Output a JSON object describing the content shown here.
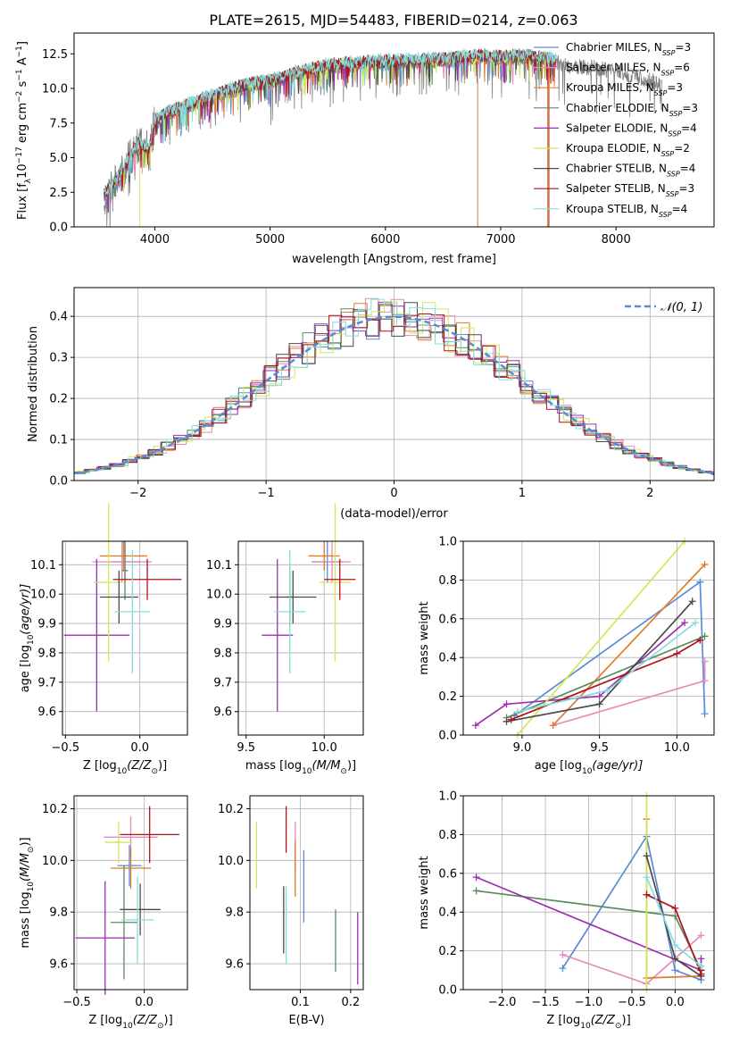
{
  "figure_title": "PLATE=2615, MJD=54483, FIBERID=0214, z=0.063",
  "colors": {
    "chabrier_miles": "#5a8bd6",
    "salpeter_miles": "#e48bbb",
    "kroupa_miles": "#e07b28",
    "chabrier_elodie": "#5c8a5e",
    "salpeter_elodie": "#9b2fb0",
    "kroupa_elodie": "#cfe85a",
    "chabrier_stelib": "#4a4a4a",
    "salpeter_stelib": "#b0121b",
    "kroupa_stelib": "#86dcdc",
    "data": "#808080",
    "grid": "#b0b0b0"
  },
  "chart_data": [
    {
      "type": "line",
      "title": "PLATE=2615, MJD=54483, FIBERID=0214, z=0.063",
      "xlabel": "wavelength [Angstrom, rest frame]",
      "ylabel_parts": [
        "Flux [f",
        "λ",
        "10",
        "−17",
        " erg cm",
        "−2",
        " s",
        "−1",
        " A",
        "−1",
        "]"
      ],
      "xlim": [
        3300,
        8850
      ],
      "ylim": [
        0,
        14
      ],
      "xticks": [
        "4000",
        "5000",
        "6000",
        "7000",
        "8000"
      ],
      "yticks": [
        "0.0",
        "2.5",
        "5.0",
        "7.5",
        "10.0",
        "12.5"
      ],
      "grid": false,
      "legend_position": "upper-right",
      "series": [
        {
          "name": "Chabrier MILES, N_SSP=3",
          "label": "Chabrier MILES, N",
          "sub": "SSP",
          "suffix": "=3",
          "color_key": "chabrier_miles"
        },
        {
          "name": "Salpeter MILES, N_SSP=6",
          "label": "Salpeter MILES, N",
          "sub": "SSP",
          "suffix": "=6",
          "color_key": "salpeter_miles"
        },
        {
          "name": "Kroupa MILES, N_SSP=3",
          "label": "Kroupa MILES, N",
          "sub": "SSP",
          "suffix": "=3",
          "color_key": "kroupa_miles"
        },
        {
          "name": "Chabrier ELODIE, N_SSP=3",
          "label": "Chabrier ELODIE, N",
          "sub": "SSP",
          "suffix": "=3",
          "color_key": "chabrier_elodie"
        },
        {
          "name": "Salpeter ELODIE, N_SSP=4",
          "label": "Salpeter ELODIE, N",
          "sub": "SSP",
          "suffix": "=4",
          "color_key": "salpeter_elodie"
        },
        {
          "name": "Kroupa ELODIE, N_SSP=2",
          "label": "Kroupa ELODIE, N",
          "sub": "SSP",
          "suffix": "=2",
          "color_key": "kroupa_elodie"
        },
        {
          "name": "Chabrier STELIB, N_SSP=4",
          "label": "Chabrier STELIB, N",
          "sub": "SSP",
          "suffix": "=4",
          "color_key": "chabrier_stelib"
        },
        {
          "name": "Salpeter STELIB, N_SSP=3",
          "label": "Salpeter STELIB, N",
          "sub": "SSP",
          "suffix": "=3",
          "color_key": "salpeter_stelib"
        },
        {
          "name": "Kroupa STELIB, N_SSP=4",
          "label": "Kroupa STELIB, N",
          "sub": "SSP",
          "suffix": "=4",
          "color_key": "kroupa_stelib"
        }
      ],
      "continuum": {
        "x": [
          3560,
          3700,
          3850,
          3950,
          4000,
          4100,
          4300,
          4500,
          4800,
          5000,
          5200,
          5500,
          5800,
          6000,
          6300,
          6600,
          6800,
          7000,
          7200,
          7400,
          7600,
          7800,
          8000,
          8200,
          8400
        ],
        "y": [
          2.3,
          3.6,
          6.0,
          5.5,
          7.6,
          8.1,
          8.8,
          9.4,
          10.2,
          10.5,
          11.0,
          11.6,
          11.8,
          11.9,
          12.0,
          12.1,
          12.3,
          12.2,
          12.3,
          12.1,
          11.6,
          11.5,
          11.2,
          10.8,
          10.3
        ]
      },
      "data_range": [
        3560,
        8400
      ],
      "model_range": [
        3560,
        7480
      ]
    },
    {
      "type": "bar",
      "xlabel": "(data-model)/error",
      "ylabel": "Normed distribution",
      "xlim": [
        -2.5,
        2.5
      ],
      "ylim": [
        0,
        0.47
      ],
      "xticks": [
        "−2",
        "−1",
        "0",
        "1",
        "2"
      ],
      "yticks": [
        "0.0",
        "0.1",
        "0.2",
        "0.3",
        "0.4"
      ],
      "grid": true,
      "legend_position": "upper-right",
      "gaussian_label": "𝒩(0, 1)",
      "bin_width": 0.1
    },
    {
      "type": "scatter",
      "xlabel_text": "Z [log",
      "xlabel_parts": [
        "Z [log",
        "10",
        "(Z/Z",
        "⊙",
        ")]"
      ],
      "ylabel_parts": [
        "age  [log",
        "10",
        "(age/yr)]"
      ],
      "xlim": [
        -0.52,
        0.32
      ],
      "ylim": [
        9.52,
        10.18
      ],
      "xticks": [
        {
          "v": -0.5,
          "t": "−0.5"
        },
        {
          "v": 0.0,
          "t": "0.0"
        }
      ],
      "yticks": [
        {
          "v": 9.6,
          "t": "9.6"
        },
        {
          "v": 9.7,
          "t": "9.7"
        },
        {
          "v": 9.8,
          "t": "9.8"
        },
        {
          "v": 9.9,
          "t": "9.9"
        },
        {
          "v": 10.0,
          "t": "10.0"
        },
        {
          "v": 10.1,
          "t": "10.1"
        }
      ],
      "grid": true,
      "points": [
        {
          "c": "chabrier_miles",
          "x": -0.1,
          "xerr": 0.1,
          "y": 10.11,
          "yerr": 0.07
        },
        {
          "c": "salpeter_miles",
          "x": -0.12,
          "xerr": 0.2,
          "y": 10.11,
          "yerr": 0.07
        },
        {
          "c": "kroupa_miles",
          "x": -0.11,
          "xerr": 0.16,
          "y": 10.13,
          "yerr": 0.05
        },
        {
          "c": "chabrier_elodie",
          "x": -0.1,
          "xerr": 0.02,
          "y": 10.08,
          "yerr": 0.1
        },
        {
          "c": "salpeter_elodie",
          "x": -0.29,
          "xerr": 0.22,
          "y": 9.86,
          "yerr": 0.26
        },
        {
          "c": "kroupa_elodie",
          "x": -0.21,
          "xerr": 0.1,
          "y": 10.04,
          "yerr": 0.27
        },
        {
          "c": "chabrier_stelib",
          "x": -0.14,
          "xerr": 0.13,
          "y": 9.99,
          "yerr": 0.09
        },
        {
          "c": "salpeter_stelib",
          "x": 0.05,
          "xerr": 0.23,
          "y": 10.05,
          "yerr": 0.07
        },
        {
          "c": "kroupa_stelib",
          "x": -0.05,
          "xerr": 0.12,
          "y": 9.94,
          "yerr": 0.21
        }
      ]
    },
    {
      "type": "scatter",
      "xlabel_parts": [
        "mass [log",
        "10",
        "(M/M",
        "⊙",
        ")]"
      ],
      "xlim": [
        9.45,
        10.25
      ],
      "ylim": [
        9.52,
        10.18
      ],
      "xticks": [
        {
          "v": 9.5,
          "t": "9.5"
        },
        {
          "v": 10.0,
          "t": "10.0"
        }
      ],
      "yticks": [
        {
          "v": 9.6,
          "t": "9.6"
        },
        {
          "v": 9.7,
          "t": "9.7"
        },
        {
          "v": 9.8,
          "t": "9.8"
        },
        {
          "v": 9.9,
          "t": "9.9"
        },
        {
          "v": 10.0,
          "t": "10.0"
        },
        {
          "v": 10.1,
          "t": "10.1"
        }
      ],
      "grid": true,
      "points": [
        {
          "c": "chabrier_miles",
          "x": 10.02,
          "xerr": 0.1,
          "y": 10.11,
          "yerr": 0.07
        },
        {
          "c": "salpeter_miles",
          "x": 10.05,
          "xerr": 0.12,
          "y": 10.11,
          "yerr": 0.07
        },
        {
          "c": "kroupa_miles",
          "x": 10.0,
          "xerr": 0.1,
          "y": 10.13,
          "yerr": 0.05
        },
        {
          "c": "chabrier_elodie",
          "x": 9.78,
          "xerr": 0.02,
          "y": 9.99,
          "yerr": 0.1
        },
        {
          "c": "salpeter_elodie",
          "x": 9.7,
          "xerr": 0.1,
          "y": 9.86,
          "yerr": 0.26
        },
        {
          "c": "kroupa_elodie",
          "x": 10.07,
          "xerr": 0.1,
          "y": 10.04,
          "yerr": 0.27
        },
        {
          "c": "chabrier_stelib",
          "x": 9.8,
          "xerr": 0.15,
          "y": 9.99,
          "yerr": 0.09
        },
        {
          "c": "salpeter_stelib",
          "x": 10.1,
          "xerr": 0.1,
          "y": 10.05,
          "yerr": 0.07
        },
        {
          "c": "kroupa_stelib",
          "x": 9.78,
          "xerr": 0.1,
          "y": 9.94,
          "yerr": 0.21
        }
      ]
    },
    {
      "type": "line",
      "xlabel_parts": [
        "age  [log",
        "10",
        "(age/yr)]"
      ],
      "ylabel": "mass weight",
      "xlim": [
        8.62,
        10.24
      ],
      "ylim": [
        0,
        1.0
      ],
      "xticks": [
        {
          "v": 9.0,
          "t": "9.0"
        },
        {
          "v": 9.5,
          "t": "9.5"
        },
        {
          "v": 10.0,
          "t": "10.0"
        }
      ],
      "yticks": [
        {
          "v": 0,
          "t": "0.0"
        },
        {
          "v": 0.2,
          "t": "0.2"
        },
        {
          "v": 0.4,
          "t": "0.4"
        },
        {
          "v": 0.6,
          "t": "0.6"
        },
        {
          "v": 0.8,
          "t": "0.8"
        },
        {
          "v": 1.0,
          "t": "1.0"
        }
      ],
      "grid": true,
      "series": [
        {
          "c": "chabrier_miles",
          "x": [
            8.95,
            10.15,
            10.18
          ],
          "y": [
            0.1,
            0.79,
            0.11
          ]
        },
        {
          "c": "salpeter_miles",
          "x": [
            9.2,
            10.18,
            10.18
          ],
          "y": [
            0.05,
            0.28,
            0.38
          ]
        },
        {
          "c": "kroupa_miles",
          "x": [
            9.2,
            10.18
          ],
          "y": [
            0.05,
            0.88
          ]
        },
        {
          "c": "chabrier_elodie",
          "x": [
            8.9,
            10.18
          ],
          "y": [
            0.09,
            0.51
          ]
        },
        {
          "c": "salpeter_elodie",
          "x": [
            8.7,
            8.9,
            9.5,
            10.05
          ],
          "y": [
            0.05,
            0.16,
            0.2,
            0.58
          ]
        },
        {
          "c": "kroupa_elodie",
          "x": [
            8.97,
            10.05
          ],
          "y": [
            0.0,
            1.0
          ]
        },
        {
          "c": "chabrier_stelib",
          "x": [
            8.9,
            9.5,
            10.1
          ],
          "y": [
            0.07,
            0.16,
            0.69
          ]
        },
        {
          "c": "salpeter_stelib",
          "x": [
            8.93,
            10.0,
            10.15
          ],
          "y": [
            0.08,
            0.42,
            0.49
          ]
        },
        {
          "c": "kroupa_stelib",
          "x": [
            8.97,
            9.55,
            10.12
          ],
          "y": [
            0.12,
            0.23,
            0.58
          ]
        }
      ]
    },
    {
      "type": "scatter",
      "xlabel_parts": [
        "Z [log",
        "10",
        "(Z/Z",
        "⊙",
        ")]"
      ],
      "ylabel_parts": [
        "mass [log",
        "10",
        "(M/M",
        "⊙",
        ")]"
      ],
      "xlim": [
        -0.52,
        0.32
      ],
      "ylim": [
        9.5,
        10.25
      ],
      "xticks": [
        {
          "v": -0.5,
          "t": "−0.5"
        },
        {
          "v": 0.0,
          "t": "0.0"
        }
      ],
      "yticks": [
        {
          "v": 9.6,
          "t": "9.6"
        },
        {
          "v": 9.8,
          "t": "9.8"
        },
        {
          "v": 10.0,
          "t": "10.0"
        },
        {
          "v": 10.2,
          "t": "10.2"
        }
      ],
      "grid": true,
      "points": [
        {
          "c": "chabrier_miles",
          "x": -0.11,
          "xerr": 0.09,
          "y": 9.98,
          "yerr": 0.08
        },
        {
          "c": "salpeter_miles",
          "x": -0.1,
          "xerr": 0.2,
          "y": 10.09,
          "yerr": 0.08
        },
        {
          "c": "kroupa_miles",
          "x": -0.1,
          "xerr": 0.15,
          "y": 9.97,
          "yerr": 0.08
        },
        {
          "c": "chabrier_elodie",
          "x": -0.15,
          "xerr": 0.1,
          "y": 9.76,
          "yerr": 0.22
        },
        {
          "c": "salpeter_elodie",
          "x": -0.29,
          "xerr": 0.22,
          "y": 9.7,
          "yerr": 0.22
        },
        {
          "c": "kroupa_elodie",
          "x": -0.19,
          "xerr": 0.1,
          "y": 10.07,
          "yerr": 0.08
        },
        {
          "c": "chabrier_stelib",
          "x": -0.03,
          "xerr": 0.15,
          "y": 9.81,
          "yerr": 0.1
        },
        {
          "c": "salpeter_stelib",
          "x": 0.04,
          "xerr": 0.22,
          "y": 10.1,
          "yerr": 0.11
        },
        {
          "c": "kroupa_stelib",
          "x": -0.05,
          "xerr": 0.12,
          "y": 9.77,
          "yerr": 0.17
        }
      ]
    },
    {
      "type": "scatter",
      "xlabel": "E(B-V)",
      "xlim": [
        0.0,
        0.225
      ],
      "ylim": [
        9.5,
        10.25
      ],
      "xticks": [
        {
          "v": 0.1,
          "t": "0.1"
        },
        {
          "v": 0.2,
          "t": "0.2"
        }
      ],
      "yticks": [
        {
          "v": 9.6,
          "t": "9.6"
        },
        {
          "v": 9.8,
          "t": "9.8"
        },
        {
          "v": 10.0,
          "t": "10.0"
        },
        {
          "v": 10.2,
          "t": "10.2"
        }
      ],
      "grid": true,
      "points": [
        {
          "c": "chabrier_miles",
          "x": 0.107,
          "xerr": 0,
          "y": 9.9,
          "yerr": 0.14
        },
        {
          "c": "salpeter_miles",
          "x": 0.09,
          "xerr": 0,
          "y": 10.05,
          "yerr": 0.1
        },
        {
          "c": "kroupa_miles",
          "x": 0.09,
          "xerr": 0,
          "y": 9.97,
          "yerr": 0.11
        },
        {
          "c": "chabrier_elodie",
          "x": 0.17,
          "xerr": 0,
          "y": 9.69,
          "yerr": 0.12
        },
        {
          "c": "salpeter_elodie",
          "x": 0.214,
          "xerr": 0,
          "y": 9.66,
          "yerr": 0.14
        },
        {
          "c": "kroupa_elodie",
          "x": 0.013,
          "xerr": 0,
          "y": 10.02,
          "yerr": 0.13
        },
        {
          "c": "chabrier_stelib",
          "x": 0.067,
          "xerr": 0,
          "y": 9.77,
          "yerr": 0.13
        },
        {
          "c": "salpeter_stelib",
          "x": 0.072,
          "xerr": 0,
          "y": 10.12,
          "yerr": 0.09
        },
        {
          "c": "kroupa_stelib",
          "x": 0.072,
          "xerr": 0,
          "y": 9.75,
          "yerr": 0.15
        }
      ]
    },
    {
      "type": "line",
      "xlabel_parts": [
        "Z [log",
        "10",
        "(Z/Z",
        "⊙",
        ")]"
      ],
      "ylabel": "mass weight",
      "xlim": [
        -2.45,
        0.45
      ],
      "ylim": [
        0,
        1.0
      ],
      "xticks": [
        {
          "v": -2.0,
          "t": "−2.0"
        },
        {
          "v": -1.5,
          "t": "−1.5"
        },
        {
          "v": -1.0,
          "t": "−1.0"
        },
        {
          "v": -0.5,
          "t": "−0.5"
        },
        {
          "v": 0.0,
          "t": "0.0"
        }
      ],
      "yticks": [
        {
          "v": 0,
          "t": "0.0"
        },
        {
          "v": 0.2,
          "t": "0.2"
        },
        {
          "v": 0.4,
          "t": "0.4"
        },
        {
          "v": 0.6,
          "t": "0.6"
        },
        {
          "v": 0.8,
          "t": "0.8"
        },
        {
          "v": 1.0,
          "t": "1.0"
        }
      ],
      "grid": true,
      "series": [
        {
          "c": "chabrier_miles",
          "x": [
            -1.3,
            -0.33,
            0.0,
            0.3
          ],
          "y": [
            0.11,
            0.79,
            0.1,
            0.05
          ]
        },
        {
          "c": "salpeter_miles",
          "x": [
            -1.3,
            -0.33,
            0.3
          ],
          "y": [
            0.18,
            0.03,
            0.28
          ]
        },
        {
          "c": "kroupa_miles",
          "x": [
            -0.33,
            -0.33,
            0.3
          ],
          "y": [
            0.88,
            0.06,
            0.07
          ]
        },
        {
          "c": "chabrier_elodie",
          "x": [
            -2.3,
            0.0,
            0.3
          ],
          "y": [
            0.51,
            0.38,
            0.1
          ]
        },
        {
          "c": "salpeter_elodie",
          "x": [
            -2.3,
            0.3,
            0.3
          ],
          "y": [
            0.58,
            0.1,
            0.16
          ]
        },
        {
          "c": "kroupa_elodie",
          "x": [
            -0.33,
            -0.33
          ],
          "y": [
            1.0,
            0.0
          ]
        },
        {
          "c": "chabrier_stelib",
          "x": [
            -0.33,
            0.0,
            0.3
          ],
          "y": [
            0.69,
            0.16,
            0.07
          ]
        },
        {
          "c": "salpeter_stelib",
          "x": [
            -0.33,
            0.0,
            0.3,
            0.3
          ],
          "y": [
            0.49,
            0.42,
            0.08,
            0.1
          ]
        },
        {
          "c": "kroupa_stelib",
          "x": [
            -0.33,
            0.0,
            0.3
          ],
          "y": [
            0.58,
            0.23,
            0.12
          ]
        }
      ]
    }
  ]
}
